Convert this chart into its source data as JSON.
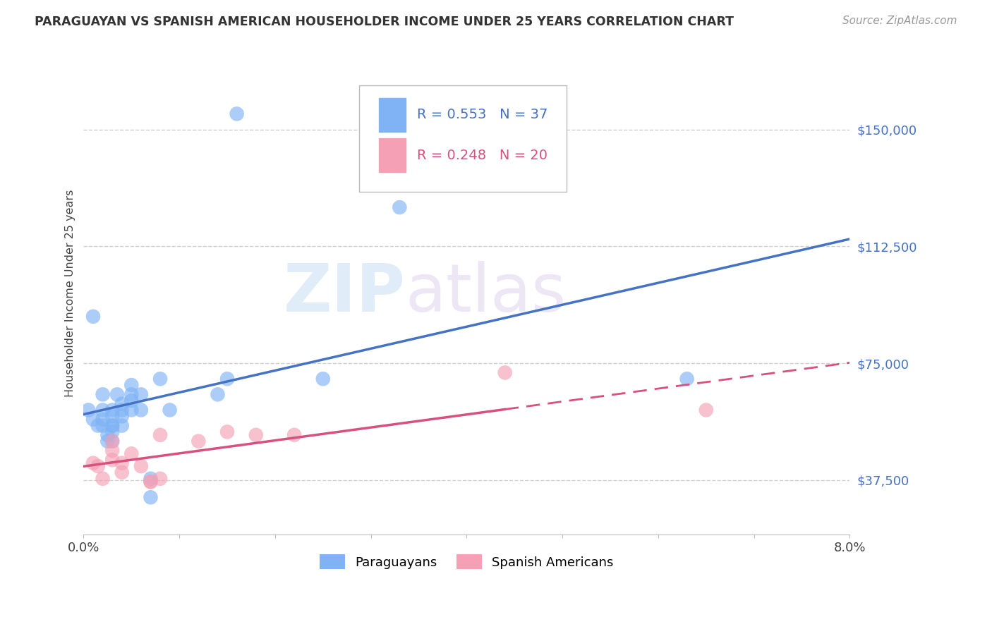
{
  "title": "PARAGUAYAN VS SPANISH AMERICAN HOUSEHOLDER INCOME UNDER 25 YEARS CORRELATION CHART",
  "source": "Source: ZipAtlas.com",
  "ylabel": "Householder Income Under 25 years",
  "xlim": [
    0.0,
    0.08
  ],
  "ylim": [
    20000,
    175000
  ],
  "yticks": [
    37500,
    75000,
    112500,
    150000
  ],
  "ytick_labels": [
    "$37,500",
    "$75,000",
    "$112,500",
    "$150,000"
  ],
  "xticks": [
    0.0,
    0.01,
    0.02,
    0.03,
    0.04,
    0.05,
    0.06,
    0.07,
    0.08
  ],
  "xtick_labels": [
    "0.0%",
    "",
    "",
    "",
    "",
    "",
    "",
    "",
    "8.0%"
  ],
  "paraguayan_color": "#7fb3f5",
  "spanish_color": "#f5a0b5",
  "line_blue": "#4472c4",
  "line_pink": "#d94f7e",
  "watermark_zip": "ZIP",
  "watermark_atlas": "atlas",
  "legend_r1": "R = 0.553",
  "legend_n1": "N = 37",
  "legend_r2": "R = 0.248",
  "legend_n2": "N = 20",
  "paraguayan_x": [
    0.0005,
    0.001,
    0.001,
    0.0015,
    0.002,
    0.002,
    0.002,
    0.002,
    0.0025,
    0.0025,
    0.003,
    0.003,
    0.003,
    0.003,
    0.003,
    0.003,
    0.0035,
    0.004,
    0.004,
    0.004,
    0.004,
    0.005,
    0.005,
    0.005,
    0.005,
    0.006,
    0.006,
    0.007,
    0.007,
    0.008,
    0.009,
    0.014,
    0.015,
    0.016,
    0.025,
    0.033,
    0.063
  ],
  "paraguayan_y": [
    60000,
    57000,
    90000,
    55000,
    55000,
    57000,
    60000,
    65000,
    50000,
    52000,
    50000,
    53000,
    55000,
    55000,
    58000,
    60000,
    65000,
    55000,
    58000,
    60000,
    62000,
    60000,
    63000,
    65000,
    68000,
    60000,
    65000,
    38000,
    32000,
    70000,
    60000,
    65000,
    70000,
    155000,
    70000,
    125000,
    70000
  ],
  "spanish_x": [
    0.001,
    0.0015,
    0.002,
    0.003,
    0.003,
    0.003,
    0.004,
    0.004,
    0.005,
    0.006,
    0.007,
    0.007,
    0.008,
    0.008,
    0.012,
    0.015,
    0.018,
    0.022,
    0.044,
    0.065
  ],
  "spanish_y": [
    43000,
    42000,
    38000,
    47000,
    50000,
    44000,
    40000,
    43000,
    46000,
    42000,
    37000,
    37000,
    38000,
    52000,
    50000,
    53000,
    52000,
    52000,
    72000,
    60000
  ],
  "background_color": "#ffffff",
  "grid_color": "#d0d0d0"
}
